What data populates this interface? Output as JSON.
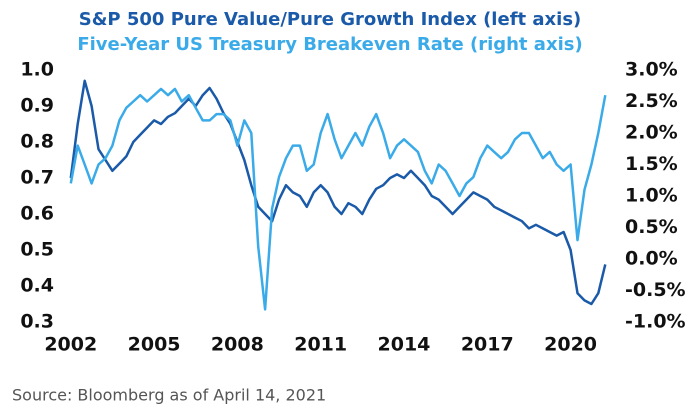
{
  "chart_data": {
    "type": "line",
    "title": "S&P 500 Pure Value/Pure Growth Index (left axis)",
    "subtitle": "Five-Year US Treasury Breakeven Rate (right axis)",
    "source": "Source: Bloomberg as of April 14, 2021",
    "x": [
      2002,
      2002.25,
      2002.5,
      2002.75,
      2003,
      2003.25,
      2003.5,
      2003.75,
      2004,
      2004.25,
      2004.5,
      2004.75,
      2005,
      2005.25,
      2005.5,
      2005.75,
      2006,
      2006.25,
      2006.5,
      2006.75,
      2007,
      2007.25,
      2007.5,
      2007.75,
      2008,
      2008.25,
      2008.5,
      2008.75,
      2009,
      2009.25,
      2009.5,
      2009.75,
      2010,
      2010.25,
      2010.5,
      2010.75,
      2011,
      2011.25,
      2011.5,
      2011.75,
      2012,
      2012.25,
      2012.5,
      2012.75,
      2013,
      2013.25,
      2013.5,
      2013.75,
      2014,
      2014.25,
      2014.5,
      2014.75,
      2015,
      2015.25,
      2015.5,
      2015.75,
      2016,
      2016.25,
      2016.5,
      2016.75,
      2017,
      2017.25,
      2017.5,
      2017.75,
      2018,
      2018.25,
      2018.5,
      2018.75,
      2019,
      2019.25,
      2019.5,
      2019.75,
      2020,
      2020.25,
      2020.5,
      2020.75,
      2021,
      2021.25
    ],
    "series": [
      {
        "name": "S&P 500 Pure Value/Pure Growth Index (left axis)",
        "color": "#1a5aa8",
        "axis": "y",
        "values": [
          0.7,
          0.85,
          0.97,
          0.9,
          0.78,
          0.75,
          0.72,
          0.74,
          0.76,
          0.8,
          0.82,
          0.84,
          0.86,
          0.85,
          0.87,
          0.88,
          0.9,
          0.92,
          0.9,
          0.93,
          0.95,
          0.92,
          0.88,
          0.85,
          0.8,
          0.75,
          0.68,
          0.62,
          0.6,
          0.58,
          0.64,
          0.68,
          0.66,
          0.65,
          0.62,
          0.66,
          0.68,
          0.66,
          0.62,
          0.6,
          0.63,
          0.62,
          0.6,
          0.64,
          0.67,
          0.68,
          0.7,
          0.71,
          0.7,
          0.72,
          0.7,
          0.68,
          0.65,
          0.64,
          0.62,
          0.6,
          0.62,
          0.64,
          0.66,
          0.65,
          0.64,
          0.62,
          0.61,
          0.6,
          0.59,
          0.58,
          0.56,
          0.57,
          0.56,
          0.55,
          0.54,
          0.55,
          0.5,
          0.38,
          0.36,
          0.35,
          0.38,
          0.46
        ]
      },
      {
        "name": "Five-Year US Treasury Breakeven Rate (right axis)",
        "color": "#3aabe8",
        "axis": "y2",
        "values": [
          1.2,
          1.8,
          1.5,
          1.2,
          1.5,
          1.6,
          1.8,
          2.2,
          2.4,
          2.5,
          2.6,
          2.5,
          2.6,
          2.7,
          2.6,
          2.7,
          2.5,
          2.6,
          2.4,
          2.2,
          2.2,
          2.3,
          2.3,
          2.2,
          1.8,
          2.2,
          2.0,
          0.2,
          -0.8,
          0.8,
          1.3,
          1.6,
          1.8,
          1.8,
          1.4,
          1.5,
          2.0,
          2.3,
          1.9,
          1.6,
          1.8,
          2.0,
          1.8,
          2.1,
          2.3,
          2.0,
          1.6,
          1.8,
          1.9,
          1.8,
          1.7,
          1.4,
          1.2,
          1.5,
          1.4,
          1.2,
          1.0,
          1.2,
          1.3,
          1.6,
          1.8,
          1.7,
          1.6,
          1.7,
          1.9,
          2.0,
          2.0,
          1.8,
          1.6,
          1.7,
          1.5,
          1.4,
          1.5,
          0.3,
          1.1,
          1.5,
          2.0,
          2.6
        ]
      }
    ],
    "xlim": [
      2001.9,
      2021.6
    ],
    "xticks": [
      2002,
      2005,
      2008,
      2011,
      2014,
      2017,
      2020
    ],
    "ylim": [
      0.3,
      1.0
    ],
    "yticks": [
      0.3,
      0.4,
      0.5,
      0.6,
      0.7,
      0.8,
      0.9,
      {
        "value": 1.0,
        "label": "1.0"
      }
    ],
    "y2lim": [
      -1.0,
      3.0
    ],
    "y2ticks": [
      {
        "value": -1.0,
        "label": "-1.0%"
      },
      {
        "value": -0.5,
        "label": "-0.5%"
      },
      {
        "value": 0.0,
        "label": "0.0%"
      },
      {
        "value": 0.5,
        "label": "0.5%"
      },
      {
        "value": 1.0,
        "label": "1.0%"
      },
      {
        "value": 1.5,
        "label": "1.5%"
      },
      {
        "value": 2.0,
        "label": "2.0%"
      },
      {
        "value": 2.5,
        "label": "2.5%"
      },
      {
        "value": 3.0,
        "label": "3.0%"
      }
    ],
    "grid": false
  }
}
